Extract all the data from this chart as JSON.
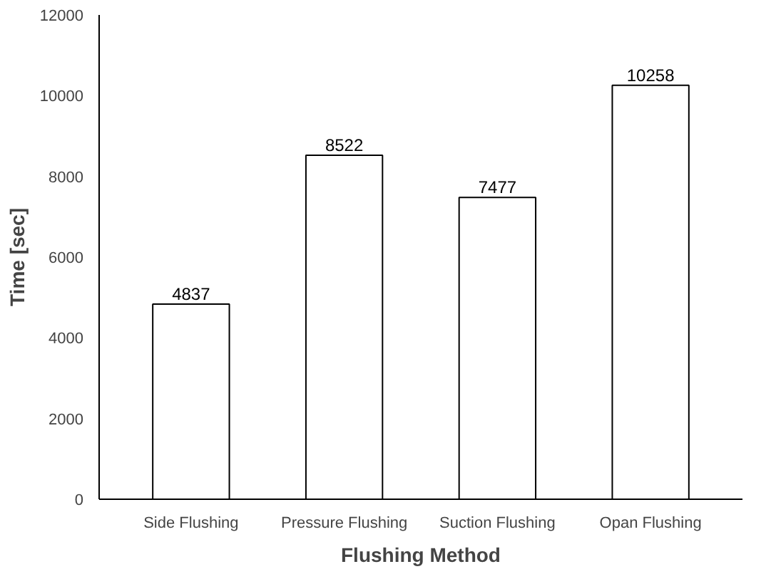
{
  "chart_data": {
    "type": "bar",
    "xlabel": "Flushing Method",
    "ylabel": "Time [sec]",
    "categories": [
      "Side Flushing",
      "Pressure Flushing",
      "Suction Flushing",
      "Opan Flushing"
    ],
    "values": [
      4837,
      8522,
      7477,
      10258
    ],
    "color": "#ffffff",
    "ylim": [
      0,
      12000
    ],
    "yticks": [
      0,
      2000,
      4000,
      6000,
      8000,
      10000,
      12000
    ],
    "grid": false,
    "data_labels": true
  }
}
